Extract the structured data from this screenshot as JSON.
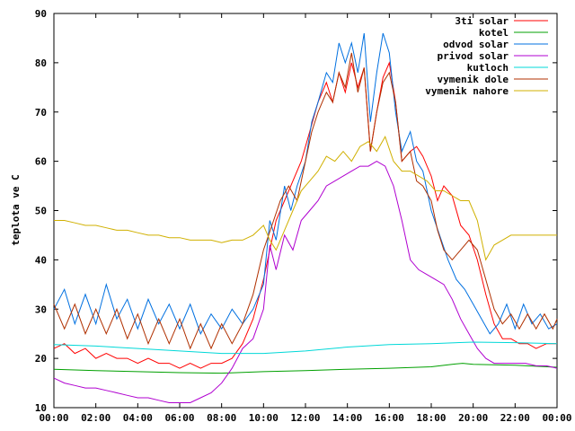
{
  "chart_data": {
    "type": "line",
    "title": "",
    "xlabel": "",
    "ylabel": "teplota ve C",
    "ylim": [
      10,
      90
    ],
    "xlim": [
      0,
      24
    ],
    "xticks": [
      "00:00",
      "02:00",
      "04:00",
      "06:00",
      "08:00",
      "10:00",
      "12:00",
      "14:00",
      "16:00",
      "18:00",
      "20:00",
      "22:00",
      "00:00"
    ],
    "yticks": [
      "10",
      "20",
      "30",
      "40",
      "50",
      "60",
      "70",
      "80",
      "90"
    ],
    "grid": false,
    "legend_position": "top-right",
    "series": [
      {
        "name": "3ti solar",
        "color": "#ff0000",
        "points": [
          [
            0,
            22
          ],
          [
            0.5,
            23
          ],
          [
            1,
            21
          ],
          [
            1.5,
            22
          ],
          [
            2,
            20
          ],
          [
            2.5,
            21
          ],
          [
            3,
            20
          ],
          [
            3.5,
            20
          ],
          [
            4,
            19
          ],
          [
            4.5,
            20
          ],
          [
            5,
            19
          ],
          [
            5.5,
            19
          ],
          [
            6,
            18
          ],
          [
            6.5,
            19
          ],
          [
            7,
            18
          ],
          [
            7.5,
            19
          ],
          [
            8,
            19
          ],
          [
            8.5,
            20
          ],
          [
            9,
            23
          ],
          [
            9.5,
            28
          ],
          [
            10,
            36
          ],
          [
            10.3,
            42
          ],
          [
            10.6,
            48
          ],
          [
            11,
            52
          ],
          [
            11.4,
            56
          ],
          [
            11.8,
            60
          ],
          [
            12.2,
            66
          ],
          [
            12.6,
            72
          ],
          [
            13,
            76
          ],
          [
            13.3,
            72
          ],
          [
            13.6,
            78
          ],
          [
            13.9,
            74
          ],
          [
            14.2,
            80
          ],
          [
            14.5,
            75
          ],
          [
            14.8,
            79
          ],
          [
            15.1,
            62
          ],
          [
            15.4,
            70
          ],
          [
            15.7,
            77
          ],
          [
            16,
            80
          ],
          [
            16.3,
            72
          ],
          [
            16.6,
            60
          ],
          [
            17,
            62
          ],
          [
            17.3,
            63
          ],
          [
            17.6,
            61
          ],
          [
            18,
            57
          ],
          [
            18.3,
            52
          ],
          [
            18.6,
            55
          ],
          [
            19,
            53
          ],
          [
            19.4,
            47
          ],
          [
            19.8,
            45
          ],
          [
            20.2,
            40
          ],
          [
            20.6,
            33
          ],
          [
            21,
            27
          ],
          [
            21.4,
            24
          ],
          [
            21.8,
            24
          ],
          [
            22.2,
            23
          ],
          [
            22.6,
            23
          ],
          [
            23,
            22
          ],
          [
            23.5,
            23
          ],
          [
            24,
            23
          ]
        ]
      },
      {
        "name": "kotel",
        "color": "#00a000",
        "points": [
          [
            0,
            17.8
          ],
          [
            2,
            17.5
          ],
          [
            4,
            17.3
          ],
          [
            6,
            17.1
          ],
          [
            8,
            17.0
          ],
          [
            10,
            17.3
          ],
          [
            12,
            17.5
          ],
          [
            14,
            17.8
          ],
          [
            16,
            18.0
          ],
          [
            18,
            18.3
          ],
          [
            19,
            18.8
          ],
          [
            19.5,
            19.0
          ],
          [
            20,
            18.8
          ],
          [
            22,
            18.6
          ],
          [
            24,
            18.2
          ]
        ]
      },
      {
        "name": "odvod solar",
        "color": "#0070e0",
        "points": [
          [
            0,
            30
          ],
          [
            0.5,
            34
          ],
          [
            1,
            27
          ],
          [
            1.5,
            33
          ],
          [
            2,
            27
          ],
          [
            2.5,
            35
          ],
          [
            3,
            28
          ],
          [
            3.5,
            32
          ],
          [
            4,
            26
          ],
          [
            4.5,
            32
          ],
          [
            5,
            27
          ],
          [
            5.5,
            31
          ],
          [
            6,
            26
          ],
          [
            6.5,
            31
          ],
          [
            7,
            25
          ],
          [
            7.5,
            29
          ],
          [
            8,
            26
          ],
          [
            8.5,
            30
          ],
          [
            9,
            27
          ],
          [
            9.5,
            30
          ],
          [
            10,
            35
          ],
          [
            10.3,
            48
          ],
          [
            10.6,
            44
          ],
          [
            11,
            55
          ],
          [
            11.3,
            50
          ],
          [
            11.6,
            55
          ],
          [
            12,
            60
          ],
          [
            12.3,
            68
          ],
          [
            12.6,
            72
          ],
          [
            13,
            78
          ],
          [
            13.3,
            76
          ],
          [
            13.6,
            84
          ],
          [
            13.9,
            80
          ],
          [
            14.2,
            84
          ],
          [
            14.5,
            78
          ],
          [
            14.8,
            86
          ],
          [
            15.1,
            68
          ],
          [
            15.4,
            78
          ],
          [
            15.7,
            86
          ],
          [
            16,
            82
          ],
          [
            16.3,
            70
          ],
          [
            16.6,
            62
          ],
          [
            17,
            66
          ],
          [
            17.3,
            60
          ],
          [
            17.6,
            58
          ],
          [
            18,
            50
          ],
          [
            18.4,
            45
          ],
          [
            18.8,
            40
          ],
          [
            19.2,
            36
          ],
          [
            19.6,
            34
          ],
          [
            20,
            31
          ],
          [
            20.4,
            28
          ],
          [
            20.8,
            25
          ],
          [
            21.2,
            27
          ],
          [
            21.6,
            31
          ],
          [
            22,
            26
          ],
          [
            22.4,
            31
          ],
          [
            22.8,
            27
          ],
          [
            23.2,
            29
          ],
          [
            23.6,
            26
          ],
          [
            24,
            27
          ]
        ]
      },
      {
        "name": "privod solar",
        "color": "#b000d0",
        "points": [
          [
            0,
            16
          ],
          [
            0.5,
            15
          ],
          [
            1,
            14.5
          ],
          [
            1.5,
            14
          ],
          [
            2,
            14
          ],
          [
            2.5,
            13.5
          ],
          [
            3,
            13
          ],
          [
            3.5,
            12.5
          ],
          [
            4,
            12
          ],
          [
            4.5,
            12
          ],
          [
            5,
            11.5
          ],
          [
            5.5,
            11
          ],
          [
            6,
            11
          ],
          [
            6.5,
            11
          ],
          [
            7,
            12
          ],
          [
            7.5,
            13
          ],
          [
            8,
            15
          ],
          [
            8.5,
            18
          ],
          [
            9,
            22
          ],
          [
            9.5,
            24
          ],
          [
            10,
            30
          ],
          [
            10.3,
            43
          ],
          [
            10.6,
            38
          ],
          [
            11,
            45
          ],
          [
            11.4,
            42
          ],
          [
            11.8,
            48
          ],
          [
            12.2,
            50
          ],
          [
            12.6,
            52
          ],
          [
            13,
            55
          ],
          [
            13.4,
            56
          ],
          [
            13.8,
            57
          ],
          [
            14.2,
            58
          ],
          [
            14.6,
            59
          ],
          [
            15,
            59
          ],
          [
            15.4,
            60
          ],
          [
            15.8,
            59
          ],
          [
            16.2,
            55
          ],
          [
            16.6,
            48
          ],
          [
            17,
            40
          ],
          [
            17.4,
            38
          ],
          [
            17.8,
            37
          ],
          [
            18.2,
            36
          ],
          [
            18.6,
            35
          ],
          [
            19,
            32
          ],
          [
            19.4,
            28
          ],
          [
            19.8,
            25
          ],
          [
            20.2,
            22
          ],
          [
            20.6,
            20
          ],
          [
            21,
            19
          ],
          [
            21.5,
            19
          ],
          [
            22,
            19
          ],
          [
            22.5,
            19
          ],
          [
            23,
            18.5
          ],
          [
            23.5,
            18.5
          ],
          [
            24,
            18
          ]
        ]
      },
      {
        "name": "kutloch",
        "color": "#00d8d8",
        "points": [
          [
            0,
            22.8
          ],
          [
            2,
            22.5
          ],
          [
            4,
            22.0
          ],
          [
            6,
            21.5
          ],
          [
            8,
            21.0
          ],
          [
            10,
            21.0
          ],
          [
            12,
            21.5
          ],
          [
            14,
            22.3
          ],
          [
            16,
            22.8
          ],
          [
            18,
            23.0
          ],
          [
            20,
            23.3
          ],
          [
            22,
            23.2
          ],
          [
            24,
            23.0
          ]
        ]
      },
      {
        "name": "vymenik dole",
        "color": "#b03000",
        "points": [
          [
            0,
            31
          ],
          [
            0.5,
            26
          ],
          [
            1,
            31
          ],
          [
            1.5,
            25
          ],
          [
            2,
            30
          ],
          [
            2.5,
            25
          ],
          [
            3,
            30
          ],
          [
            3.5,
            24
          ],
          [
            4,
            29
          ],
          [
            4.5,
            23
          ],
          [
            5,
            28
          ],
          [
            5.5,
            23
          ],
          [
            6,
            28
          ],
          [
            6.5,
            22
          ],
          [
            7,
            27
          ],
          [
            7.5,
            22
          ],
          [
            8,
            27
          ],
          [
            8.5,
            23
          ],
          [
            9,
            27
          ],
          [
            9.5,
            33
          ],
          [
            10,
            42
          ],
          [
            10.4,
            47
          ],
          [
            10.8,
            52
          ],
          [
            11.2,
            55
          ],
          [
            11.6,
            52
          ],
          [
            12,
            60
          ],
          [
            12.3,
            66
          ],
          [
            12.6,
            70
          ],
          [
            13,
            74
          ],
          [
            13.3,
            72
          ],
          [
            13.6,
            78
          ],
          [
            13.9,
            75
          ],
          [
            14.2,
            82
          ],
          [
            14.5,
            74
          ],
          [
            14.8,
            79
          ],
          [
            15.1,
            62
          ],
          [
            15.4,
            70
          ],
          [
            15.7,
            76
          ],
          [
            16,
            78
          ],
          [
            16.3,
            72
          ],
          [
            16.6,
            60
          ],
          [
            17,
            62
          ],
          [
            17.3,
            56
          ],
          [
            17.6,
            55
          ],
          [
            18,
            52
          ],
          [
            18.3,
            46
          ],
          [
            18.6,
            42
          ],
          [
            19,
            40
          ],
          [
            19.4,
            42
          ],
          [
            19.8,
            44
          ],
          [
            20.2,
            42
          ],
          [
            20.6,
            36
          ],
          [
            21,
            30
          ],
          [
            21.4,
            27
          ],
          [
            21.8,
            29
          ],
          [
            22.2,
            26
          ],
          [
            22.6,
            29
          ],
          [
            23,
            26
          ],
          [
            23.4,
            29
          ],
          [
            23.8,
            26
          ],
          [
            24,
            28
          ]
        ]
      },
      {
        "name": "vymenik nahore",
        "color": "#d0b000",
        "points": [
          [
            0,
            48
          ],
          [
            0.5,
            48
          ],
          [
            1,
            47.5
          ],
          [
            1.5,
            47
          ],
          [
            2,
            47
          ],
          [
            2.5,
            46.5
          ],
          [
            3,
            46
          ],
          [
            3.5,
            46
          ],
          [
            4,
            45.5
          ],
          [
            4.5,
            45
          ],
          [
            5,
            45
          ],
          [
            5.5,
            44.5
          ],
          [
            6,
            44.5
          ],
          [
            6.5,
            44
          ],
          [
            7,
            44
          ],
          [
            7.5,
            44
          ],
          [
            8,
            43.5
          ],
          [
            8.5,
            44
          ],
          [
            9,
            44
          ],
          [
            9.5,
            45
          ],
          [
            10,
            47
          ],
          [
            10.3,
            44
          ],
          [
            10.6,
            42
          ],
          [
            11,
            46
          ],
          [
            11.4,
            50
          ],
          [
            11.8,
            54
          ],
          [
            12.2,
            56
          ],
          [
            12.6,
            58
          ],
          [
            13,
            61
          ],
          [
            13.4,
            60
          ],
          [
            13.8,
            62
          ],
          [
            14.2,
            60
          ],
          [
            14.6,
            63
          ],
          [
            15,
            64
          ],
          [
            15.4,
            62
          ],
          [
            15.8,
            65
          ],
          [
            16.2,
            60
          ],
          [
            16.6,
            58
          ],
          [
            17,
            58
          ],
          [
            17.4,
            57
          ],
          [
            17.8,
            56
          ],
          [
            18.2,
            54
          ],
          [
            18.6,
            54
          ],
          [
            19,
            53
          ],
          [
            19.4,
            52
          ],
          [
            19.8,
            52
          ],
          [
            20.2,
            48
          ],
          [
            20.6,
            40
          ],
          [
            21,
            43
          ],
          [
            21.4,
            44
          ],
          [
            21.8,
            45
          ],
          [
            22.2,
            45
          ],
          [
            22.6,
            45
          ],
          [
            23,
            45
          ],
          [
            23.5,
            45
          ],
          [
            24,
            45
          ]
        ]
      }
    ]
  }
}
